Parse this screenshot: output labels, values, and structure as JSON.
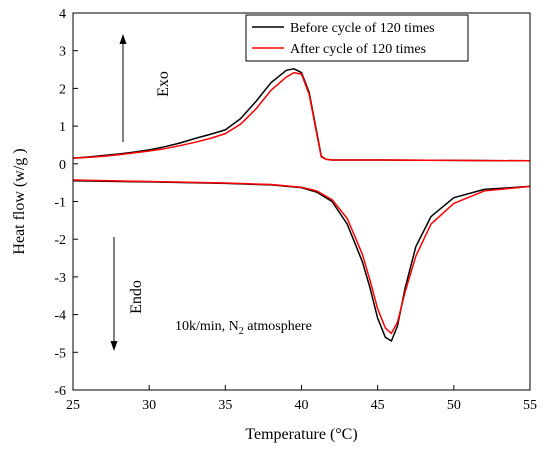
{
  "chart_data": {
    "type": "line",
    "xlabel": "Temperature (°C)",
    "ylabel": "Heat flow  (w/g )",
    "xlim": [
      25,
      55
    ],
    "ylim": [
      -6,
      4
    ],
    "xticks": [
      25,
      30,
      35,
      40,
      45,
      50,
      55
    ],
    "yticks": [
      -6,
      -5,
      -4,
      -3,
      -2,
      -1,
      0,
      1,
      2,
      3,
      4
    ],
    "grid": false,
    "legend_position": "top-right",
    "annotations": {
      "exo": "Exo",
      "endo": "Endo",
      "condition_prefix": "10k/min, N",
      "condition_subscript": "2",
      "condition_suffix": " atmosphere"
    },
    "series": [
      {
        "name": "Before cycle of 120 times",
        "color": "#000000",
        "curves": [
          {
            "x": [
              25,
              26,
              27,
              28,
              29,
              30,
              31,
              32,
              33,
              34,
              35,
              36,
              37,
              38,
              39,
              39.5,
              40,
              40.5,
              41,
              41.3,
              41.6,
              42,
              45,
              50,
              55
            ],
            "y": [
              0.15,
              0.18,
              0.22,
              0.26,
              0.31,
              0.37,
              0.45,
              0.55,
              0.67,
              0.78,
              0.9,
              1.2,
              1.65,
              2.15,
              2.48,
              2.52,
              2.42,
              1.9,
              0.85,
              0.2,
              0.12,
              0.1,
              0.1,
              0.09,
              0.08
            ]
          },
          {
            "x": [
              25,
              30,
              35,
              38,
              40,
              41,
              42,
              43,
              44,
              44.5,
              45,
              45.5,
              45.9,
              46.3,
              46.8,
              47.5,
              48.5,
              50,
              52,
              55
            ],
            "y": [
              -0.45,
              -0.48,
              -0.52,
              -0.56,
              -0.63,
              -0.75,
              -1.0,
              -1.6,
              -2.6,
              -3.3,
              -4.1,
              -4.6,
              -4.7,
              -4.3,
              -3.3,
              -2.2,
              -1.4,
              -0.9,
              -0.68,
              -0.6
            ]
          }
        ]
      },
      {
        "name": "After cycle of 120 times",
        "color": "#ff0000",
        "curves": [
          {
            "x": [
              25,
              26,
              27,
              28,
              29,
              30,
              31,
              32,
              33,
              34,
              35,
              36,
              37,
              38,
              39,
              39.5,
              40,
              40.5,
              41,
              41.3,
              41.6,
              42,
              45,
              50,
              55
            ],
            "y": [
              0.15,
              0.17,
              0.2,
              0.24,
              0.29,
              0.34,
              0.4,
              0.48,
              0.57,
              0.67,
              0.8,
              1.05,
              1.45,
              1.95,
              2.3,
              2.42,
              2.38,
              1.85,
              0.8,
              0.18,
              0.12,
              0.1,
              0.1,
              0.09,
              0.08
            ]
          },
          {
            "x": [
              25,
              30,
              35,
              38,
              40,
              41,
              42,
              43,
              44,
              44.5,
              45,
              45.5,
              45.9,
              46.3,
              46.8,
              47.5,
              48.5,
              50,
              52,
              55
            ],
            "y": [
              -0.43,
              -0.47,
              -0.51,
              -0.55,
              -0.62,
              -0.72,
              -0.95,
              -1.45,
              -2.4,
              -3.1,
              -3.85,
              -4.35,
              -4.5,
              -4.2,
              -3.4,
              -2.45,
              -1.6,
              -1.05,
              -0.72,
              -0.6
            ]
          }
        ]
      }
    ]
  }
}
